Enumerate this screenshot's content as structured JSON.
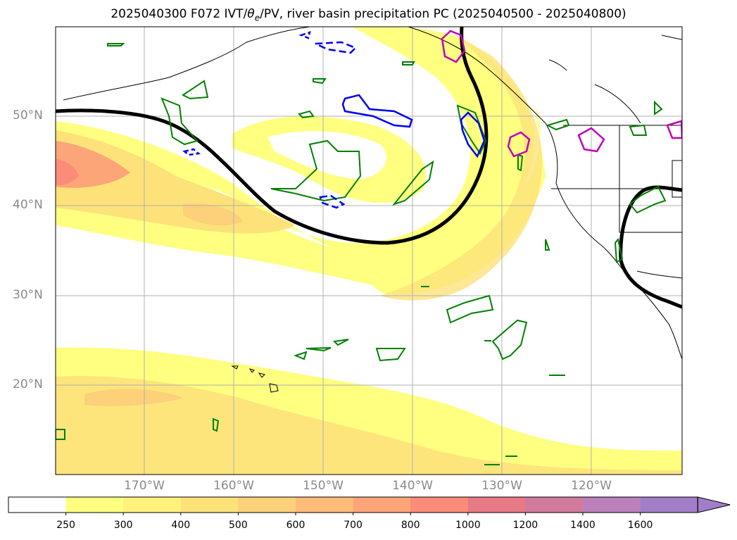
{
  "title_parts": {
    "prefix": "2025040300 F072 IVT/",
    "theta": "θ",
    "sub": "e",
    "suffix": "/PV, river basin precipitation PC (2025040500 - 2025040800)"
  },
  "lat_labels": [
    "50°N",
    "40°N",
    "30°N",
    "20°N"
  ],
  "lon_labels": [
    "170°W",
    "160°W",
    "150°W",
    "140°W",
    "130°W",
    "120°W"
  ],
  "colorbar": {
    "ticks": [
      "250",
      "300",
      "400",
      "500",
      "600",
      "700",
      "800",
      "1000",
      "1200",
      "1400",
      "1600"
    ],
    "colors": [
      "#ffffff",
      "#ffff80",
      "#fef27c",
      "#fde27a",
      "#fdd07a",
      "#fdbc7a",
      "#fca578",
      "#fb8c78",
      "#e87a86",
      "#d07a9e",
      "#bc80bc",
      "#a27ec9"
    ],
    "extend": "max"
  },
  "colors": {
    "pv_contour": "#000000",
    "precip_green": "#008000",
    "theta_blue": "#0000ee",
    "magenta": "#c000c0"
  }
}
